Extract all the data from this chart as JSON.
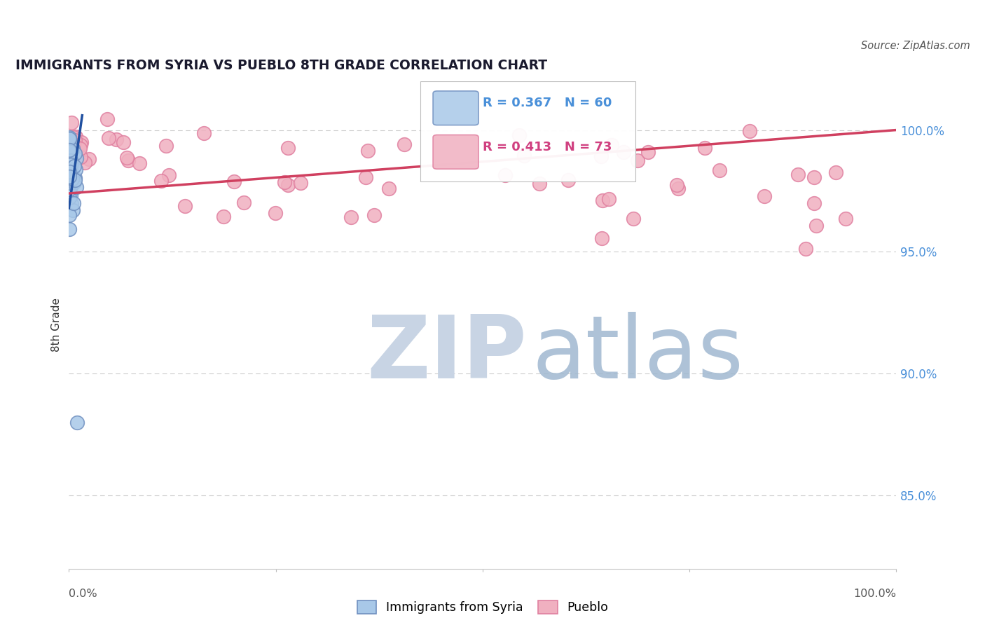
{
  "title": "IMMIGRANTS FROM SYRIA VS PUEBLO 8TH GRADE CORRELATION CHART",
  "source": "Source: ZipAtlas.com",
  "ylabel": "8th Grade",
  "xlim": [
    0.0,
    100.0
  ],
  "ylim": [
    82.0,
    102.0
  ],
  "yticks": [
    85.0,
    90.0,
    95.0,
    100.0
  ],
  "ytick_labels": [
    "85.0%",
    "90.0%",
    "95.0%",
    "100.0%"
  ],
  "legend_blue_r": "R = 0.367",
  "legend_blue_n": "N = 60",
  "legend_pink_r": "R = 0.413",
  "legend_pink_n": "N = 73",
  "legend_label_blue": "Immigrants from Syria",
  "legend_label_pink": "Pueblo",
  "blue_fill": "#a8c8e8",
  "blue_edge": "#7090c0",
  "pink_fill": "#f0b0c0",
  "pink_edge": "#e080a0",
  "blue_line_color": "#2050a0",
  "pink_line_color": "#d04060",
  "background_color": "#ffffff",
  "grid_color": "#cccccc",
  "zip_color": "#c8d4e4",
  "atlas_color": "#a0b8d0",
  "title_color": "#1a1a2e",
  "ylabel_color": "#333333",
  "ytick_color": "#4a90d9",
  "source_color": "#555555"
}
